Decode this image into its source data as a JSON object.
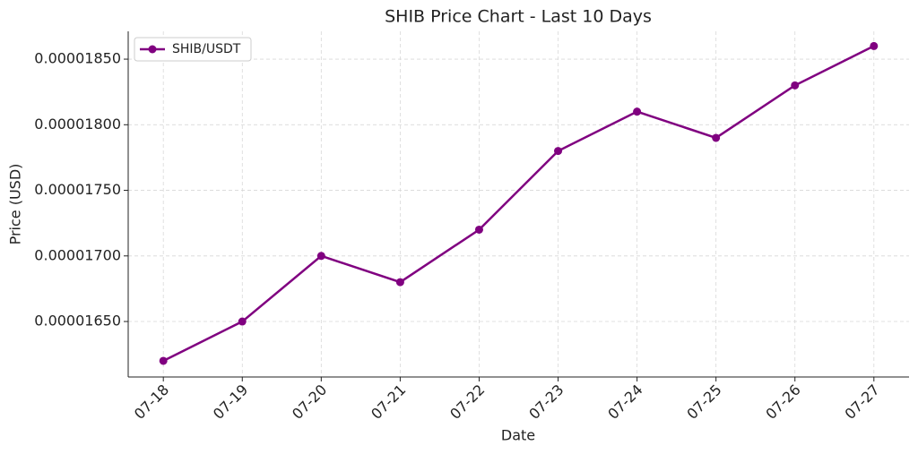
{
  "chart_data": {
    "type": "line",
    "title": "SHIB Price Chart - Last 10 Days",
    "x_label": "Date",
    "y_label": "Price (USD)",
    "categories": [
      "07-18",
      "07-19",
      "07-20",
      "07-21",
      "07-22",
      "07-23",
      "07-24",
      "07-25",
      "07-26",
      "07-27"
    ],
    "series": [
      {
        "name": "SHIB/USDT",
        "color": "#800080",
        "values": [
          1.62e-05,
          1.65e-05,
          1.7e-05,
          1.68e-05,
          1.72e-05,
          1.78e-05,
          1.81e-05,
          1.79e-05,
          1.83e-05,
          1.86e-05
        ]
      }
    ],
    "ylim": [
      1.6077e-05,
      1.8712e-05
    ],
    "yticks": [
      {
        "value": 1.65e-05,
        "label": "0.00001650"
      },
      {
        "value": 1.7e-05,
        "label": "0.00001700"
      },
      {
        "value": 1.75e-05,
        "label": "0.00001750"
      },
      {
        "value": 1.8e-05,
        "label": "0.00001800"
      },
      {
        "value": 1.85e-05,
        "label": "0.00001850"
      }
    ],
    "grid": true,
    "legend": "upper left"
  }
}
